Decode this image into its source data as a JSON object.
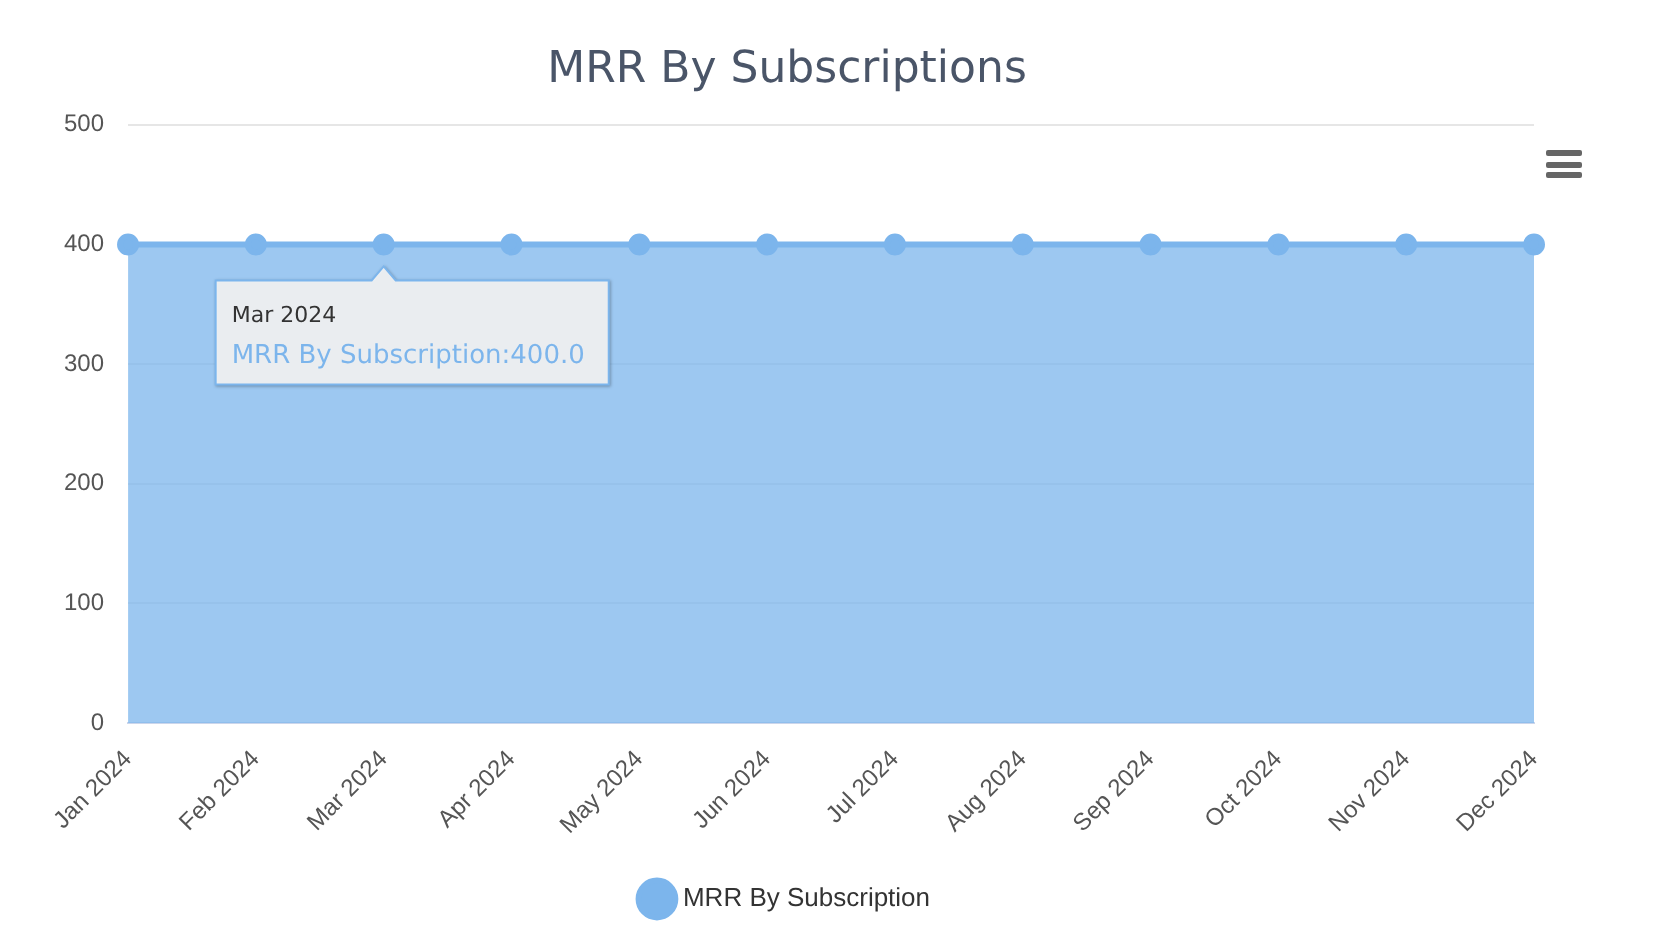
{
  "chart_data": {
    "type": "area",
    "title": "MRR By Subscriptions",
    "categories": [
      "Jan 2024",
      "Feb 2024",
      "Mar 2024",
      "Apr 2024",
      "May 2024",
      "Jun 2024",
      "Jul 2024",
      "Aug 2024",
      "Sep 2024",
      "Oct 2024",
      "Nov 2024",
      "Dec 2024"
    ],
    "series": [
      {
        "name": "MRR By Subscription",
        "color": "#7cb5ec",
        "values": [
          400,
          400,
          400,
          400,
          400,
          400,
          400,
          400,
          400,
          400,
          400,
          400
        ]
      }
    ],
    "ylim": [
      0,
      500
    ],
    "yticks": [
      0,
      100,
      200,
      300,
      400,
      500
    ],
    "grid": "y",
    "legend": "bottom",
    "marker": "circle",
    "annotations": [
      {
        "text": "Mar 2024",
        "x": "Mar 2024",
        "y": 400
      },
      "MRR By Subscription:400.0"
    ]
  }
}
